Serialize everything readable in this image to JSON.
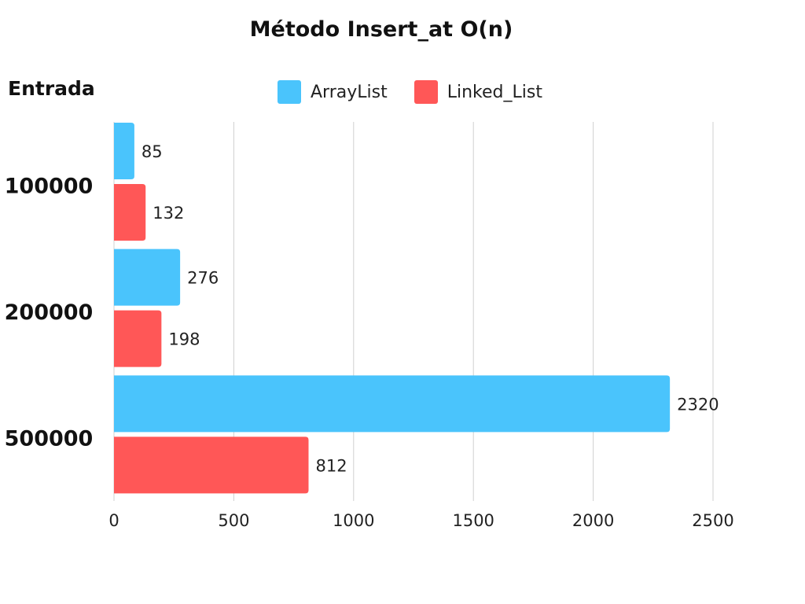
{
  "chart_data": {
    "type": "bar",
    "orientation": "horizontal",
    "title": "Método Insert_at O(n)",
    "ylabel": "Entrada",
    "xlabel": "",
    "categories": [
      "100000",
      "200000",
      "500000"
    ],
    "series": [
      {
        "name": "ArrayList",
        "color": "#4ac4fc",
        "values": [
          85,
          276,
          2320
        ]
      },
      {
        "name": "Linked_List",
        "color": "#ff5757",
        "values": [
          132,
          198,
          812
        ]
      }
    ],
    "xlim": [
      0,
      2500
    ],
    "xticks": [
      "0",
      "500",
      "1000",
      "1500",
      "2000",
      "2500"
    ],
    "grid": true,
    "legend_position": "top"
  }
}
